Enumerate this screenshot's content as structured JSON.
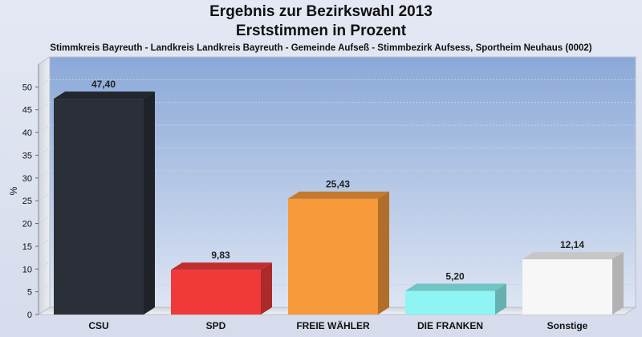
{
  "chart_data": {
    "type": "bar",
    "title": "Ergebnis zur Bezirkswahl 2013",
    "subtitle": "Erststimmen in Prozent",
    "caption": "Stimmkreis Bayreuth - Landkreis Landkreis Bayreuth - Gemeinde Aufseß - Stimmbezirk Aufsess, Sportheim Neuhaus (0002)",
    "ylabel": "%",
    "xlabel": "",
    "ylim": [
      0,
      55
    ],
    "yticks": [
      0,
      5,
      10,
      15,
      20,
      25,
      30,
      35,
      40,
      45,
      50
    ],
    "grid": true,
    "categories": [
      "CSU",
      "SPD",
      "FREIE WÄHLER",
      "DIE FRANKEN",
      "Sonstige"
    ],
    "values": [
      47.4,
      9.83,
      25.43,
      5.2,
      12.14
    ],
    "value_labels": [
      "47,40",
      "9,83",
      "25,43",
      "5,20",
      "12,14"
    ],
    "colors": [
      "#2b2f38",
      "#f03a3a",
      "#f5993a",
      "#8ef4f4",
      "#f7f7f7"
    ]
  }
}
